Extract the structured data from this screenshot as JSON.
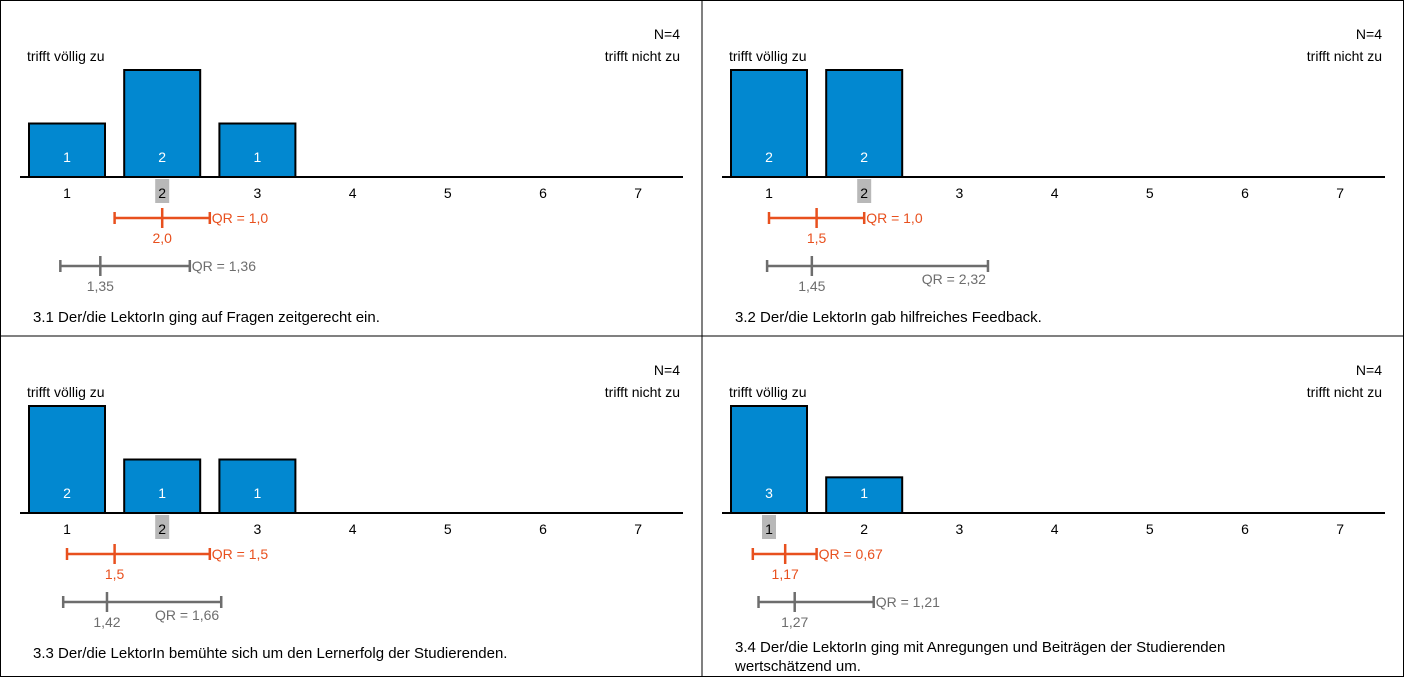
{
  "colors": {
    "bar": "#0288d0",
    "median": "#e8501e",
    "reference": "#6d6d6d",
    "highlight": "#b8b8b8",
    "axis": "#000000"
  },
  "chart_data": [
    {
      "type": "bar",
      "n": "N=4",
      "left_label": "trifft völlig zu",
      "right_label": "trifft nicht zu",
      "categories": [
        "1",
        "2",
        "3",
        "4",
        "5",
        "6",
        "7"
      ],
      "values": [
        1,
        2,
        1,
        0,
        0,
        0,
        0
      ],
      "median_category": "2",
      "median": {
        "value": 2.0,
        "label": "2,0",
        "qr_from": 1.5,
        "qr_to": 2.5,
        "qr_label": "QR = 1,0"
      },
      "reference": {
        "value": 1.35,
        "label": "1,35",
        "qr_from": 0.93,
        "qr_to": 2.29,
        "qr_label": "QR = 1,36"
      },
      "caption": "3.1 Der/die LektorIn ging auf Fragen zeitgerecht ein."
    },
    {
      "type": "bar",
      "n": "N=4",
      "left_label": "trifft völlig zu",
      "right_label": "trifft nicht zu",
      "categories": [
        "1",
        "2",
        "3",
        "4",
        "5",
        "6",
        "7"
      ],
      "values": [
        2,
        2,
        0,
        0,
        0,
        0,
        0
      ],
      "median_category": "2",
      "median": {
        "value": 1.5,
        "label": "1,5",
        "qr_from": 1.0,
        "qr_to": 2.0,
        "qr_label": "QR = 1,0"
      },
      "reference": {
        "value": 1.45,
        "label": "1,45",
        "qr_from": 0.98,
        "qr_to": 3.3,
        "qr_label": "QR = 2,32"
      },
      "caption": "3.2 Der/die LektorIn gab hilfreiches Feedback."
    },
    {
      "type": "bar",
      "n": "N=4",
      "left_label": "trifft völlig zu",
      "right_label": "trifft nicht zu",
      "categories": [
        "1",
        "2",
        "3",
        "4",
        "5",
        "6",
        "7"
      ],
      "values": [
        2,
        1,
        1,
        0,
        0,
        0,
        0
      ],
      "median_category": "2",
      "median": {
        "value": 1.5,
        "label": "1,5",
        "qr_from": 1.0,
        "qr_to": 2.5,
        "qr_label": "QR = 1,5"
      },
      "reference": {
        "value": 1.42,
        "label": "1,42",
        "qr_from": 0.96,
        "qr_to": 2.62,
        "qr_label": "QR = 1,66"
      },
      "caption": "3.3 Der/die LektorIn bemühte sich um den Lernerfolg der Studierenden."
    },
    {
      "type": "bar",
      "n": "N=4",
      "left_label": "trifft völlig zu",
      "right_label": "trifft nicht zu",
      "categories": [
        "1",
        "2",
        "3",
        "4",
        "5",
        "6",
        "7"
      ],
      "values": [
        3,
        1,
        0,
        0,
        0,
        0,
        0
      ],
      "median_category": "1",
      "median": {
        "value": 1.17,
        "label": "1,17",
        "qr_from": 0.83,
        "qr_to": 1.5,
        "qr_label": "QR = 0,67"
      },
      "reference": {
        "value": 1.27,
        "label": "1,27",
        "qr_from": 0.89,
        "qr_to": 2.1,
        "qr_label": "QR = 1,21"
      },
      "caption_lines": [
        "3.4 Der/die LektorIn ging mit Anregungen und Beiträgen der Studierenden",
        "wertschätzend um."
      ]
    }
  ]
}
